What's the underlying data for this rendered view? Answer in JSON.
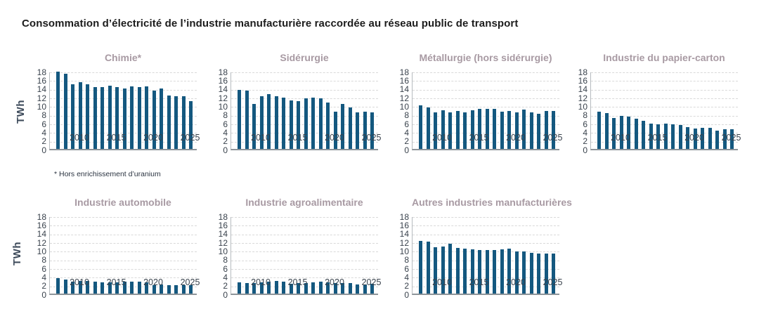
{
  "page": {
    "title": "Consommation d’électricité de l’industrie manufacturière raccordée au réseau public de transport",
    "footnote": "* Hors enrichissement d’uranium",
    "y_unit": "TWh"
  },
  "colors": {
    "bar": "#14587f",
    "chart_title": "#a89aa3",
    "axis_text": "#39424c",
    "main_title": "#1c1c1c",
    "grid": "#d9d9d9",
    "baseline": "#8d9499",
    "axis_line": "#b6bbbf",
    "background": "#ffffff"
  },
  "axes": {
    "y_ticks": [
      18,
      16,
      14,
      12,
      10,
      8,
      6,
      4,
      2,
      0
    ],
    "y_max": 18,
    "x_tick_years": [
      2010,
      2015,
      2020,
      2025
    ],
    "grid": "dashed horizontal every 2 TWh"
  },
  "chart_data": [
    {
      "type": "bar",
      "title": "Chimie*",
      "ylabel": "TWh",
      "ylim": [
        0,
        18
      ],
      "x": [
        2007,
        2008,
        2009,
        2010,
        2011,
        2012,
        2013,
        2014,
        2015,
        2016,
        2017,
        2018,
        2019,
        2020,
        2021,
        2022,
        2023,
        2024,
        2025
      ],
      "values": [
        17.8,
        17.3,
        15.0,
        15.4,
        15.0,
        14.3,
        14.3,
        14.6,
        14.3,
        14.0,
        14.5,
        14.2,
        14.4,
        13.4,
        13.9,
        12.3,
        12.1,
        12.2,
        11.1
      ]
    },
    {
      "type": "bar",
      "title": "Sidérurgie",
      "ylabel": "TWh",
      "ylim": [
        0,
        18
      ],
      "x": [
        2007,
        2008,
        2009,
        2010,
        2011,
        2012,
        2013,
        2014,
        2015,
        2016,
        2017,
        2018,
        2019,
        2020,
        2021,
        2022,
        2023,
        2024,
        2025
      ],
      "values": [
        13.6,
        13.4,
        10.4,
        12.2,
        12.7,
        12.1,
        11.9,
        11.2,
        11.0,
        11.7,
        11.9,
        11.7,
        10.7,
        8.6,
        10.3,
        9.5,
        8.5,
        8.6,
        8.4
      ]
    },
    {
      "type": "bar",
      "title": "Métallurgie (hors sidérurgie)",
      "ylabel": "TWh",
      "ylim": [
        0,
        18
      ],
      "x": [
        2007,
        2008,
        2009,
        2010,
        2011,
        2012,
        2013,
        2014,
        2015,
        2016,
        2017,
        2018,
        2019,
        2020,
        2021,
        2022,
        2023,
        2024,
        2025
      ],
      "values": [
        10.0,
        9.5,
        8.5,
        8.9,
        8.5,
        8.7,
        8.5,
        9.0,
        9.2,
        9.2,
        9.3,
        8.6,
        8.8,
        8.5,
        9.1,
        8.4,
        8.1,
        8.7,
        8.7
      ]
    },
    {
      "type": "bar",
      "title": "Industrie du papier-carton",
      "ylabel": "TWh",
      "ylim": [
        0,
        18
      ],
      "x": [
        2007,
        2008,
        2009,
        2010,
        2011,
        2012,
        2013,
        2014,
        2015,
        2016,
        2017,
        2018,
        2019,
        2020,
        2021,
        2022,
        2023,
        2024,
        2025
      ],
      "values": [
        8.6,
        8.3,
        7.2,
        7.6,
        7.4,
        6.9,
        6.5,
        5.9,
        5.7,
        5.8,
        5.7,
        5.5,
        5.1,
        4.7,
        4.9,
        4.8,
        4.2,
        4.5,
        4.6
      ]
    },
    {
      "type": "bar",
      "title": "Industrie automobile",
      "ylabel": "TWh",
      "ylim": [
        0,
        18
      ],
      "x": [
        2007,
        2008,
        2009,
        2010,
        2011,
        2012,
        2013,
        2014,
        2015,
        2016,
        2017,
        2018,
        2019,
        2020,
        2021,
        2022,
        2023,
        2024,
        2025
      ],
      "values": [
        3.6,
        3.2,
        2.8,
        3.0,
        2.9,
        2.7,
        2.6,
        2.6,
        2.6,
        2.7,
        2.7,
        2.7,
        2.6,
        2.0,
        2.1,
        2.0,
        2.0,
        1.9,
        1.9
      ]
    },
    {
      "type": "bar",
      "title": "Industrie agroalimentaire",
      "ylabel": "TWh",
      "ylim": [
        0,
        18
      ],
      "x": [
        2007,
        2008,
        2009,
        2010,
        2011,
        2012,
        2013,
        2014,
        2015,
        2016,
        2017,
        2018,
        2019,
        2020,
        2021,
        2022,
        2023,
        2024,
        2025
      ],
      "values": [
        2.6,
        2.5,
        2.5,
        2.6,
        2.7,
        2.9,
        2.8,
        2.3,
        2.4,
        2.5,
        2.6,
        2.8,
        2.6,
        2.5,
        2.5,
        2.4,
        2.1,
        2.1,
        2.3
      ]
    },
    {
      "type": "bar",
      "title": "Autres industries manufacturières",
      "ylabel": "TWh",
      "ylim": [
        0,
        18
      ],
      "x": [
        2007,
        2008,
        2009,
        2010,
        2011,
        2012,
        2013,
        2014,
        2015,
        2016,
        2017,
        2018,
        2019,
        2020,
        2021,
        2022,
        2023,
        2024,
        2025
      ],
      "values": [
        12.2,
        12.0,
        10.7,
        10.9,
        11.5,
        10.6,
        10.3,
        10.2,
        10.1,
        10.1,
        10.1,
        10.2,
        10.3,
        9.7,
        9.7,
        9.4,
        9.2,
        9.3,
        9.3
      ]
    }
  ]
}
